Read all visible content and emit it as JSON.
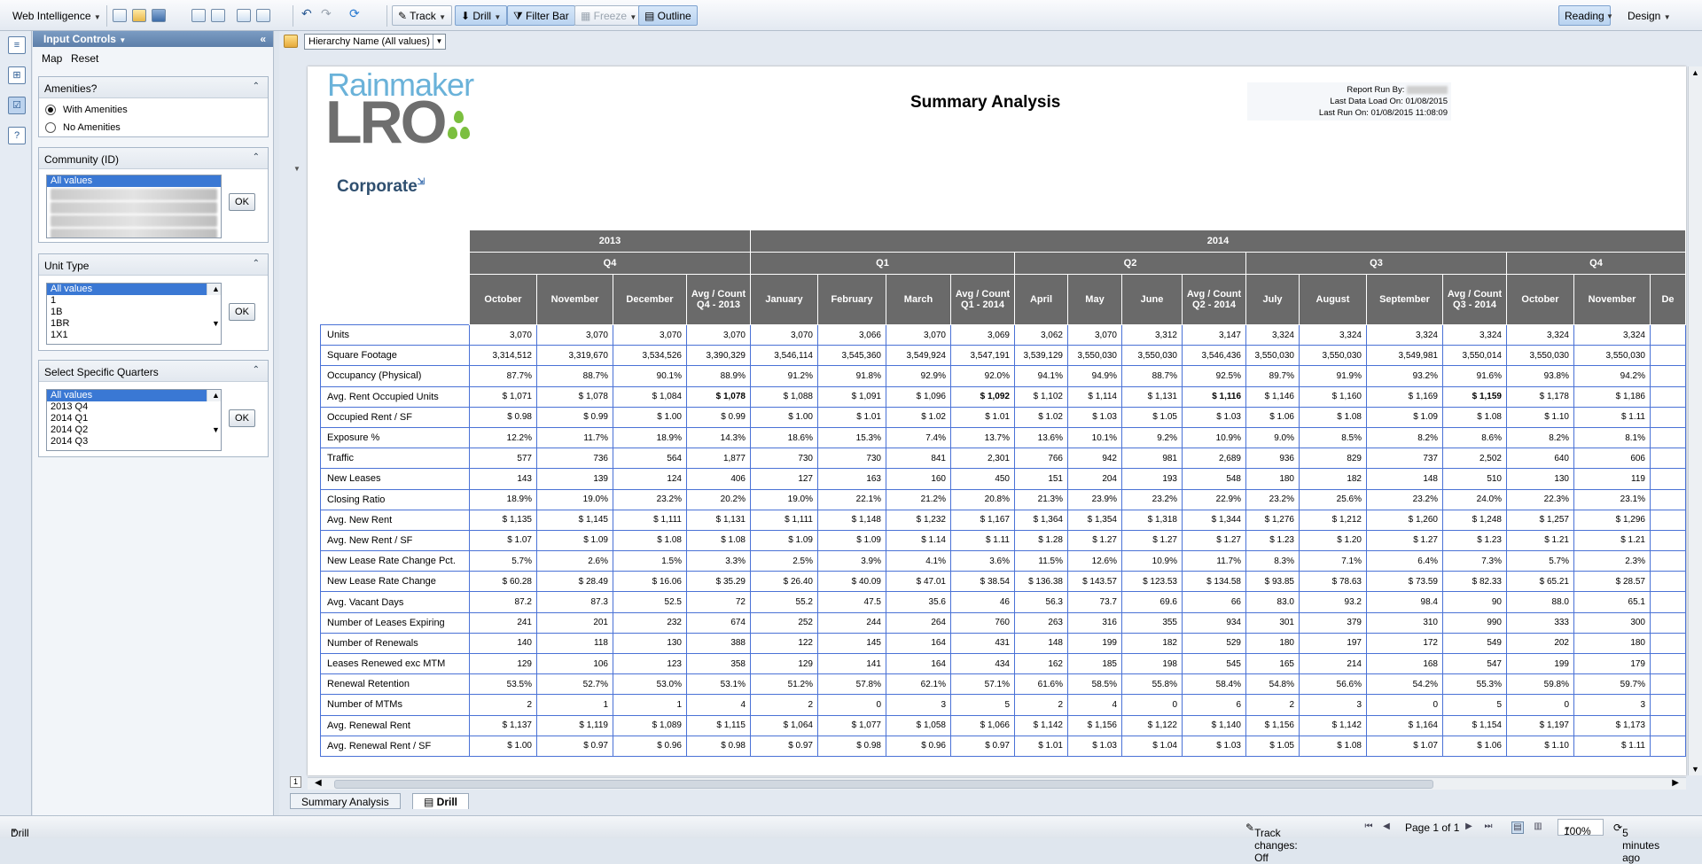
{
  "toolbar": {
    "app_name": "Web Intelligence",
    "track_label": "Track",
    "drill_label": "Drill",
    "filter_bar_label": "Filter Bar",
    "freeze_label": "Freeze",
    "outline_label": "Outline",
    "reading_label": "Reading",
    "design_label": "Design"
  },
  "input_controls": {
    "title": "Input Controls",
    "map_label": "Map",
    "reset_label": "Reset",
    "amenities": {
      "title": "Amenities?",
      "options": [
        "With Amenities",
        "No Amenities"
      ],
      "selected": "With Amenities"
    },
    "community": {
      "title": "Community (ID)",
      "items": [
        "All values"
      ],
      "ok": "OK"
    },
    "unit_type": {
      "title": "Unit Type",
      "items": [
        "All values",
        "1",
        "1B",
        "1BR",
        "1X1"
      ],
      "ok": "OK"
    },
    "quarters": {
      "title": "Select Specific Quarters",
      "items": [
        "All values",
        "2013 Q4",
        "2014 Q1",
        "2014 Q2",
        "2014 Q3"
      ],
      "ok": "OK"
    }
  },
  "hierarchy_filter": "Hierarchy Name (All values)",
  "report": {
    "logo_top": "Rainmaker",
    "logo_bottom": "LRO",
    "title": "Summary Analysis",
    "run_by_label": "Report Run By:",
    "last_data_load": "Last Data Load On: 01/08/2015",
    "last_run": "Last Run On: 01/08/2015 11:08:09",
    "section_title": "Corporate",
    "years": [
      "2013",
      "2014"
    ],
    "quarters": [
      "Q4",
      "Q1",
      "Q2",
      "Q3",
      "Q4"
    ],
    "columns": [
      "October",
      "November",
      "December",
      "Avg / Count Q4 - 2013",
      "January",
      "February",
      "March",
      "Avg / Count Q1 - 2014",
      "April",
      "May",
      "June",
      "Avg / Count Q2 - 2014",
      "July",
      "August",
      "September",
      "Avg / Count Q3 - 2014",
      "October",
      "November",
      "De"
    ],
    "rows": [
      {
        "label": "Units",
        "values": [
          "3,070",
          "3,070",
          "3,070",
          "3,070",
          "3,070",
          "3,066",
          "3,070",
          "3,069",
          "3,062",
          "3,070",
          "3,312",
          "3,147",
          "3,324",
          "3,324",
          "3,324",
          "3,324",
          "3,324",
          "3,324"
        ]
      },
      {
        "label": "Square Footage",
        "values": [
          "3,314,512",
          "3,319,670",
          "3,534,526",
          "3,390,329",
          "3,546,114",
          "3,545,360",
          "3,549,924",
          "3,547,191",
          "3,539,129",
          "3,550,030",
          "3,550,030",
          "3,546,436",
          "3,550,030",
          "3,550,030",
          "3,549,981",
          "3,550,014",
          "3,550,030",
          "3,550,030"
        ]
      },
      {
        "label": "Occupancy (Physical)",
        "values": [
          "87.7%",
          "88.7%",
          "90.1%",
          "88.9%",
          "91.2%",
          "91.8%",
          "92.9%",
          "92.0%",
          "94.1%",
          "94.9%",
          "88.7%",
          "92.5%",
          "89.7%",
          "91.9%",
          "93.2%",
          "91.6%",
          "93.8%",
          "94.2%"
        ]
      },
      {
        "label": "Avg. Rent Occupied Units",
        "values": [
          "$ 1,071",
          "$ 1,078",
          "$ 1,084",
          "$ 1,078",
          "$ 1,088",
          "$ 1,091",
          "$ 1,096",
          "$ 1,092",
          "$ 1,102",
          "$ 1,114",
          "$ 1,131",
          "$ 1,116",
          "$ 1,146",
          "$ 1,160",
          "$ 1,169",
          "$ 1,159",
          "$ 1,178",
          "$ 1,186"
        ]
      },
      {
        "label": "Occupied Rent / SF",
        "values": [
          "$ 0.98",
          "$ 0.99",
          "$ 1.00",
          "$ 0.99",
          "$ 1.00",
          "$ 1.01",
          "$ 1.02",
          "$ 1.01",
          "$ 1.02",
          "$ 1.03",
          "$ 1.05",
          "$ 1.03",
          "$ 1.06",
          "$ 1.08",
          "$ 1.09",
          "$ 1.08",
          "$ 1.10",
          "$ 1.11"
        ]
      },
      {
        "label": "Exposure %",
        "values": [
          "12.2%",
          "11.7%",
          "18.9%",
          "14.3%",
          "18.6%",
          "15.3%",
          "7.4%",
          "13.7%",
          "13.6%",
          "10.1%",
          "9.2%",
          "10.9%",
          "9.0%",
          "8.5%",
          "8.2%",
          "8.6%",
          "8.2%",
          "8.1%"
        ]
      },
      {
        "label": "Traffic",
        "values": [
          "577",
          "736",
          "564",
          "1,877",
          "730",
          "730",
          "841",
          "2,301",
          "766",
          "942",
          "981",
          "2,689",
          "936",
          "829",
          "737",
          "2,502",
          "640",
          "606"
        ]
      },
      {
        "label": "New Leases",
        "values": [
          "143",
          "139",
          "124",
          "406",
          "127",
          "163",
          "160",
          "450",
          "151",
          "204",
          "193",
          "548",
          "180",
          "182",
          "148",
          "510",
          "130",
          "119"
        ]
      },
      {
        "label": "Closing Ratio",
        "values": [
          "18.9%",
          "19.0%",
          "23.2%",
          "20.2%",
          "19.0%",
          "22.1%",
          "21.2%",
          "20.8%",
          "21.3%",
          "23.9%",
          "23.2%",
          "22.9%",
          "23.2%",
          "25.6%",
          "23.2%",
          "24.0%",
          "22.3%",
          "23.1%"
        ]
      },
      {
        "label": "Avg. New Rent",
        "values": [
          "$ 1,135",
          "$ 1,145",
          "$ 1,111",
          "$ 1,131",
          "$ 1,111",
          "$ 1,148",
          "$ 1,232",
          "$ 1,167",
          "$ 1,364",
          "$ 1,354",
          "$ 1,318",
          "$ 1,344",
          "$ 1,276",
          "$ 1,212",
          "$ 1,260",
          "$ 1,248",
          "$ 1,257",
          "$ 1,296"
        ]
      },
      {
        "label": "Avg. New Rent / SF",
        "values": [
          "$ 1.07",
          "$ 1.09",
          "$ 1.08",
          "$ 1.08",
          "$ 1.09",
          "$ 1.09",
          "$ 1.14",
          "$ 1.11",
          "$ 1.28",
          "$ 1.27",
          "$ 1.27",
          "$ 1.27",
          "$ 1.23",
          "$ 1.20",
          "$ 1.27",
          "$ 1.23",
          "$ 1.21",
          "$ 1.21"
        ]
      },
      {
        "label": "New Lease Rate Change Pct.",
        "values": [
          "5.7%",
          "2.6%",
          "1.5%",
          "3.3%",
          "2.5%",
          "3.9%",
          "4.1%",
          "3.6%",
          "11.5%",
          "12.6%",
          "10.9%",
          "11.7%",
          "8.3%",
          "7.1%",
          "6.4%",
          "7.3%",
          "5.7%",
          "2.3%"
        ]
      },
      {
        "label": "New Lease Rate Change",
        "values": [
          "$ 60.28",
          "$ 28.49",
          "$ 16.06",
          "$ 35.29",
          "$ 26.40",
          "$ 40.09",
          "$ 47.01",
          "$ 38.54",
          "$ 136.38",
          "$ 143.57",
          "$ 123.53",
          "$ 134.58",
          "$ 93.85",
          "$ 78.63",
          "$ 73.59",
          "$ 82.33",
          "$ 65.21",
          "$ 28.57"
        ]
      },
      {
        "label": "Avg. Vacant Days",
        "values": [
          "87.2",
          "87.3",
          "52.5",
          "72",
          "55.2",
          "47.5",
          "35.6",
          "46",
          "56.3",
          "73.7",
          "69.6",
          "66",
          "83.0",
          "93.2",
          "98.4",
          "90",
          "88.0",
          "65.1"
        ]
      },
      {
        "label": "Number of Leases Expiring",
        "values": [
          "241",
          "201",
          "232",
          "674",
          "252",
          "244",
          "264",
          "760",
          "263",
          "316",
          "355",
          "934",
          "301",
          "379",
          "310",
          "990",
          "333",
          "300"
        ]
      },
      {
        "label": "Number of Renewals",
        "values": [
          "140",
          "118",
          "130",
          "388",
          "122",
          "145",
          "164",
          "431",
          "148",
          "199",
          "182",
          "529",
          "180",
          "197",
          "172",
          "549",
          "202",
          "180"
        ]
      },
      {
        "label": "Leases Renewed exc MTM",
        "values": [
          "129",
          "106",
          "123",
          "358",
          "129",
          "141",
          "164",
          "434",
          "162",
          "185",
          "198",
          "545",
          "165",
          "214",
          "168",
          "547",
          "199",
          "179"
        ]
      },
      {
        "label": "Renewal Retention",
        "values": [
          "53.5%",
          "52.7%",
          "53.0%",
          "53.1%",
          "51.2%",
          "57.8%",
          "62.1%",
          "57.1%",
          "61.6%",
          "58.5%",
          "55.8%",
          "58.4%",
          "54.8%",
          "56.6%",
          "54.2%",
          "55.3%",
          "59.8%",
          "59.7%"
        ]
      },
      {
        "label": "Number of MTMs",
        "values": [
          "2",
          "1",
          "1",
          "4",
          "2",
          "0",
          "3",
          "5",
          "2",
          "4",
          "0",
          "6",
          "2",
          "3",
          "0",
          "5",
          "0",
          "3"
        ]
      },
      {
        "label": "Avg. Renewal Rent",
        "values": [
          "$ 1,137",
          "$ 1,119",
          "$ 1,089",
          "$ 1,115",
          "$ 1,064",
          "$ 1,077",
          "$ 1,058",
          "$ 1,066",
          "$ 1,142",
          "$ 1,156",
          "$ 1,122",
          "$ 1,140",
          "$ 1,156",
          "$ 1,142",
          "$ 1,164",
          "$ 1,154",
          "$ 1,197",
          "$ 1,173"
        ]
      },
      {
        "label": "Avg. Renewal Rent / SF",
        "values": [
          "$ 1.00",
          "$ 0.97",
          "$ 0.96",
          "$ 0.98",
          "$ 0.97",
          "$ 0.98",
          "$ 0.96",
          "$ 0.97",
          "$ 1.01",
          "$ 1.03",
          "$ 1.04",
          "$ 1.03",
          "$ 1.05",
          "$ 1.08",
          "$ 1.07",
          "$ 1.06",
          "$ 1.10",
          "$ 1.11"
        ]
      }
    ]
  },
  "tabs": [
    "Summary Analysis",
    "Drill"
  ],
  "status": {
    "mode": "Drill",
    "track_changes": "Track changes: Off",
    "page": "Page 1 of 1",
    "zoom": "100%",
    "refreshed": "5 minutes ago"
  }
}
